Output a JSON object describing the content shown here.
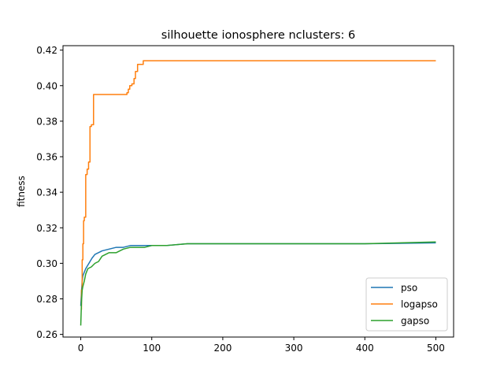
{
  "chart_data": {
    "type": "line",
    "title": "silhouette ionosphere nclusters: 6",
    "xlabel": "",
    "ylabel": "fitness",
    "xlim": [
      -25,
      525
    ],
    "ylim": [
      0.2585,
      0.4225
    ],
    "xticks": [
      0,
      100,
      200,
      300,
      400,
      500
    ],
    "xtick_labels": [
      "0",
      "100",
      "200",
      "300",
      "400",
      "500"
    ],
    "yticks": [
      0.26,
      0.28,
      0.3,
      0.32,
      0.34,
      0.36,
      0.38,
      0.4,
      0.42
    ],
    "ytick_labels": [
      "0.26",
      "0.28",
      "0.30",
      "0.32",
      "0.34",
      "0.36",
      "0.38",
      "0.40",
      "0.42"
    ],
    "grid": false,
    "legend_position": "lower-right",
    "series": [
      {
        "name": "pso",
        "color": "#1f77b4",
        "step": false,
        "x": [
          0,
          1,
          2,
          3,
          5,
          7,
          10,
          13,
          16,
          20,
          25,
          30,
          40,
          50,
          60,
          70,
          80,
          90,
          100,
          120,
          150,
          200,
          300,
          400,
          500
        ],
        "y": [
          0.276,
          0.284,
          0.29,
          0.293,
          0.295,
          0.297,
          0.299,
          0.301,
          0.303,
          0.305,
          0.306,
          0.307,
          0.308,
          0.309,
          0.309,
          0.31,
          0.31,
          0.31,
          0.31,
          0.31,
          0.311,
          0.311,
          0.311,
          0.311,
          0.3115
        ]
      },
      {
        "name": "logapso",
        "color": "#ff7f0e",
        "step": true,
        "x": [
          0,
          1,
          2,
          3,
          4,
          5,
          7,
          9,
          11,
          13,
          15,
          18,
          65,
          67,
          69,
          72,
          75,
          77,
          80,
          88,
          500
        ],
        "y": [
          0.274,
          0.285,
          0.302,
          0.311,
          0.324,
          0.326,
          0.35,
          0.353,
          0.357,
          0.377,
          0.378,
          0.395,
          0.396,
          0.398,
          0.4,
          0.401,
          0.404,
          0.408,
          0.412,
          0.414,
          0.414
        ]
      },
      {
        "name": "gapso",
        "color": "#2ca02c",
        "step": false,
        "x": [
          0,
          1,
          2,
          3,
          5,
          7,
          10,
          15,
          20,
          25,
          30,
          35,
          40,
          50,
          55,
          60,
          70,
          80,
          90,
          100,
          120,
          150,
          200,
          300,
          400,
          500
        ],
        "y": [
          0.265,
          0.278,
          0.285,
          0.287,
          0.29,
          0.294,
          0.297,
          0.298,
          0.3,
          0.301,
          0.304,
          0.305,
          0.306,
          0.306,
          0.307,
          0.308,
          0.309,
          0.309,
          0.309,
          0.31,
          0.31,
          0.311,
          0.311,
          0.311,
          0.311,
          0.312
        ]
      }
    ]
  }
}
